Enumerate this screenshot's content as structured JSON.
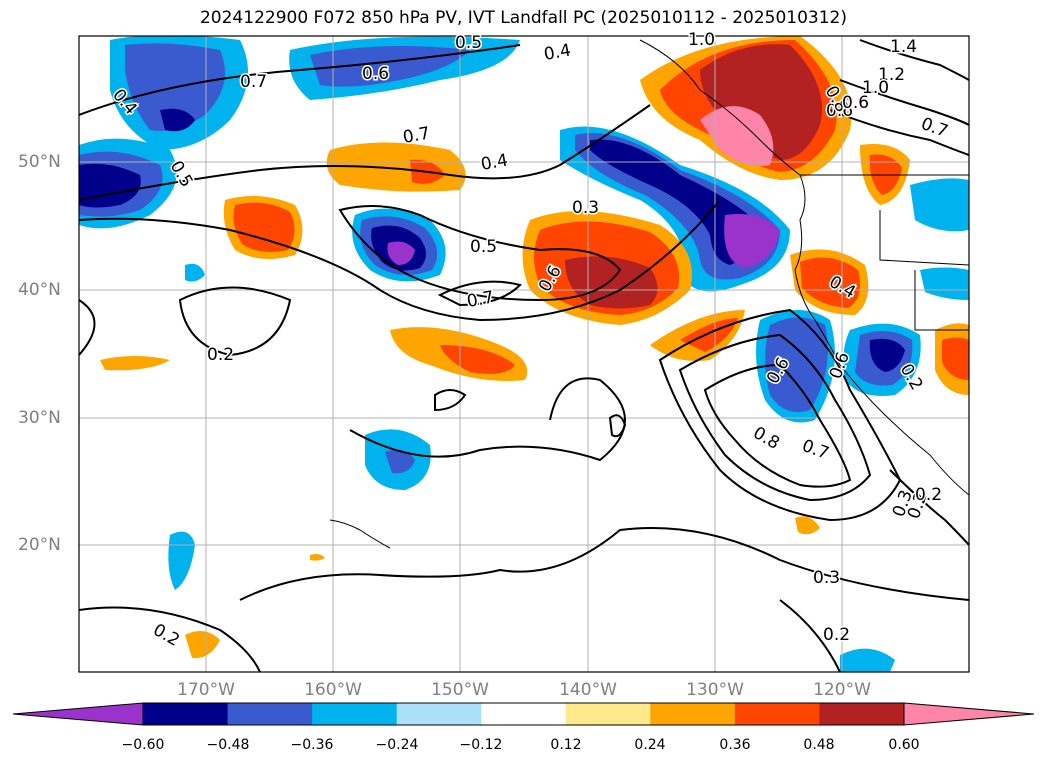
{
  "title": "2024122900 F072 850 hPa PV, IVT Landfall PC (2025010112 - 2025010312)",
  "lat_labels": [
    "50°N",
    "40°N",
    "30°N",
    "20°N"
  ],
  "lon_labels": [
    "170°W",
    "160°W",
    "150°W",
    "140°W",
    "130°W",
    "120°W"
  ],
  "colorbar": {
    "ticks": [
      "−0.60",
      "−0.48",
      "−0.36",
      "−0.24",
      "−0.12",
      "0.12",
      "0.24",
      "0.36",
      "0.48",
      "0.60"
    ],
    "colors": [
      "#9933cc",
      "#00008b",
      "#3a5bcf",
      "#00b2ee",
      "#aae0fa",
      "#ffffff",
      "#ffe98a",
      "#ffa500",
      "#ff4500",
      "#b22222",
      "#ff85a8"
    ]
  },
  "contour_labels": [
    "0.5",
    "0.4",
    "1.0",
    "1.4",
    "1.2",
    "1.0",
    "0.6",
    "0.7",
    "0.4",
    "0.7",
    "0.6",
    "0.7",
    "0.8",
    "0.6",
    "0.5",
    "0.4",
    "0.3",
    "0.5",
    "0.7",
    "0.6",
    "0.2",
    "0.4",
    "0.6",
    "0.6",
    "0.8",
    "0.7",
    "0.3",
    "0.2",
    "0.2",
    "0.2",
    "0.3",
    "0.2",
    "0.2"
  ]
}
